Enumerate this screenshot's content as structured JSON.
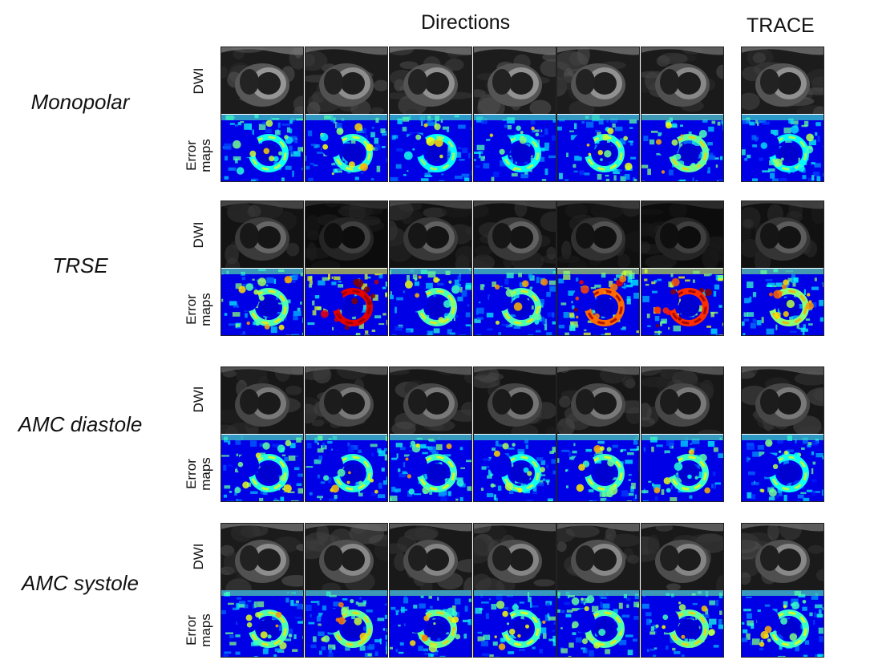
{
  "figure": {
    "header_directions": "Directions",
    "header_trace": "TRACE"
  },
  "groups": [
    {
      "name": "Monopolar",
      "dwi_label": "DWI",
      "error_label_line1": "Error",
      "error_label_line2": "maps",
      "dwi_brightness": [
        0.62,
        0.58,
        0.6,
        0.6,
        0.6,
        0.56,
        0.6
      ],
      "error_level": [
        0.34,
        0.36,
        0.32,
        0.33,
        0.36,
        0.42,
        0.32
      ]
    },
    {
      "name": "TRSE",
      "dwi_label": "DWI",
      "error_label_line1": "Error",
      "error_label_line2": "maps",
      "dwi_brightness": [
        0.42,
        0.26,
        0.4,
        0.4,
        0.34,
        0.26,
        0.38
      ],
      "error_level": [
        0.4,
        0.85,
        0.4,
        0.4,
        0.72,
        0.78,
        0.46
      ]
    },
    {
      "name": "AMC diastole",
      "dwi_label": "DWI",
      "error_label_line1": "Error",
      "error_label_line2": "maps",
      "dwi_brightness": [
        0.5,
        0.5,
        0.5,
        0.48,
        0.5,
        0.5,
        0.5
      ],
      "error_level": [
        0.36,
        0.36,
        0.38,
        0.34,
        0.38,
        0.38,
        0.34
      ]
    },
    {
      "name": "AMC systole",
      "dwi_label": "DWI",
      "error_label_line1": "Error",
      "error_label_line2": "maps",
      "dwi_brightness": [
        0.58,
        0.56,
        0.55,
        0.55,
        0.56,
        0.55,
        0.56
      ],
      "error_level": [
        0.4,
        0.42,
        0.42,
        0.38,
        0.4,
        0.42,
        0.38
      ]
    }
  ]
}
